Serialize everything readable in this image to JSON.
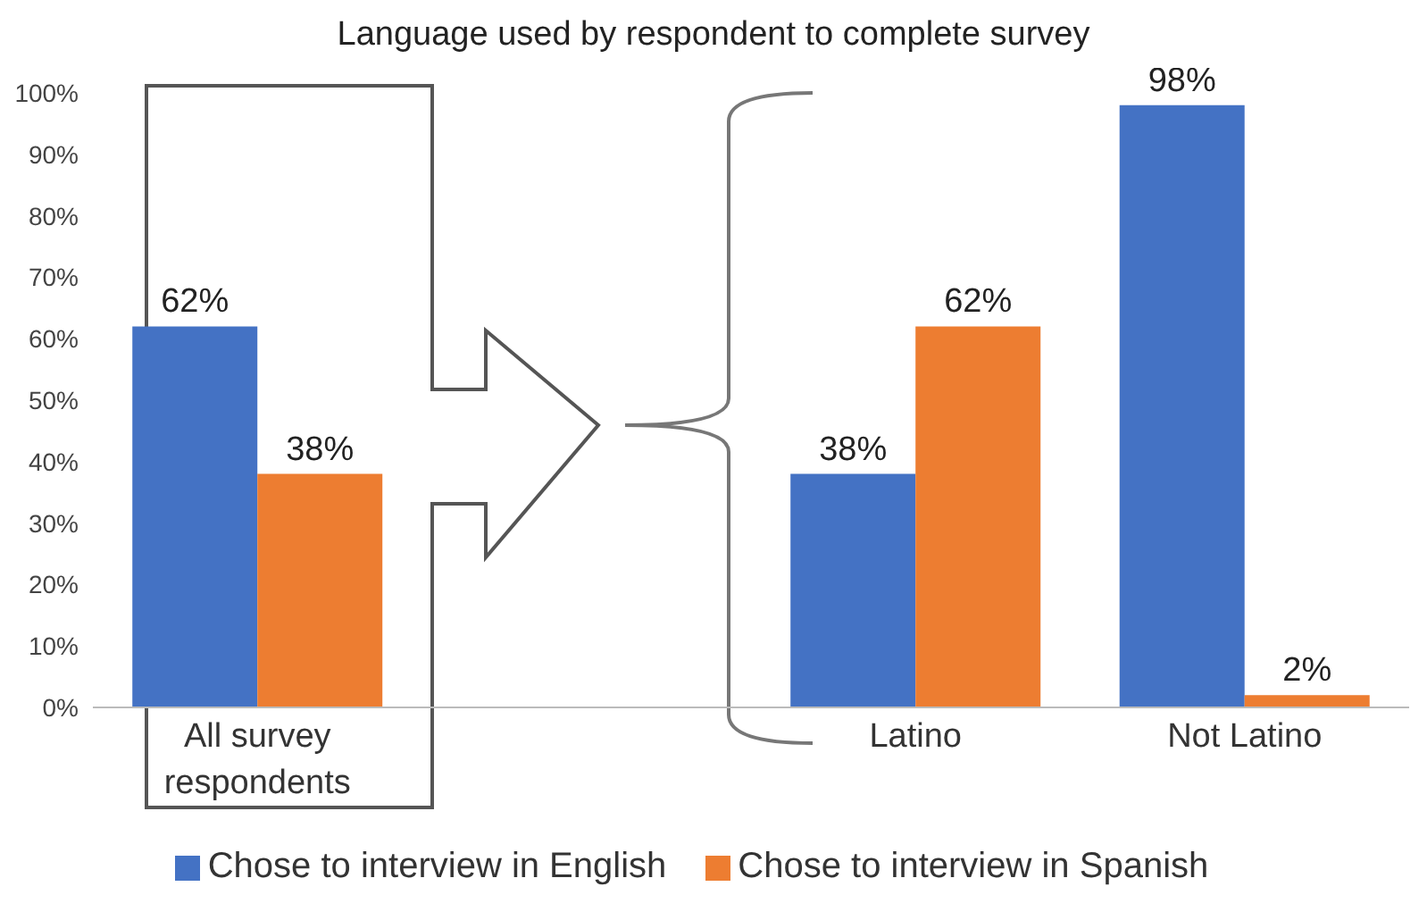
{
  "chart_data": {
    "type": "bar",
    "title": "Language used by respondent to complete survey",
    "categories": [
      "All survey respondents",
      null,
      "Latino",
      "Not Latino"
    ],
    "series": [
      {
        "name": "Chose to interview in English",
        "color": "#4472c4",
        "values": [
          62,
          null,
          38,
          98
        ],
        "value_labels": [
          "62%",
          null,
          "38%",
          "98%"
        ]
      },
      {
        "name": "Chose to interview in Spanish",
        "color": "#ed7d31",
        "values": [
          38,
          null,
          62,
          2
        ],
        "value_labels": [
          "38%",
          null,
          "62%",
          "2%"
        ]
      }
    ],
    "ylim": [
      0,
      100
    ],
    "yticks": [
      {
        "value": 0,
        "label": "0%"
      },
      {
        "value": 10,
        "label": "10%"
      },
      {
        "value": 20,
        "label": "20%"
      },
      {
        "value": 30,
        "label": "30%"
      },
      {
        "value": 40,
        "label": "40%"
      },
      {
        "value": 50,
        "label": "50%"
      },
      {
        "value": 60,
        "label": "60%"
      },
      {
        "value": 70,
        "label": "70%"
      },
      {
        "value": 80,
        "label": "80%"
      },
      {
        "value": 90,
        "label": "90%"
      },
      {
        "value": 100,
        "label": "100%"
      }
    ],
    "grid": false,
    "legend": "bottom"
  }
}
